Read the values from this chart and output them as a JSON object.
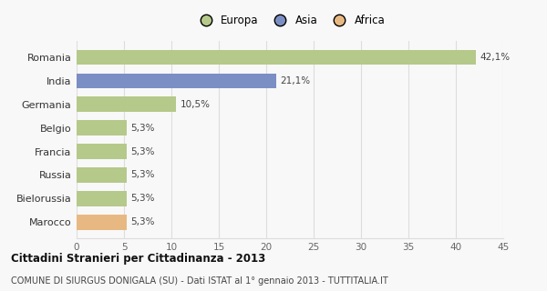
{
  "categories": [
    "Marocco",
    "Bielorussia",
    "Russia",
    "Francia",
    "Belgio",
    "Germania",
    "India",
    "Romania"
  ],
  "values": [
    5.3,
    5.3,
    5.3,
    5.3,
    5.3,
    10.5,
    21.1,
    42.1
  ],
  "labels": [
    "5,3%",
    "5,3%",
    "5,3%",
    "5,3%",
    "5,3%",
    "10,5%",
    "21,1%",
    "42,1%"
  ],
  "colors": [
    "#e8b882",
    "#b5c98a",
    "#b5c98a",
    "#b5c98a",
    "#b5c98a",
    "#b5c98a",
    "#7b8fc4",
    "#b5c98a"
  ],
  "legend": [
    {
      "label": "Europa",
      "color": "#b5c98a"
    },
    {
      "label": "Asia",
      "color": "#7b8fc4"
    },
    {
      "label": "Africa",
      "color": "#e8b882"
    }
  ],
  "xlim": [
    0,
    45
  ],
  "xticks": [
    0,
    5,
    10,
    15,
    20,
    25,
    30,
    35,
    40,
    45
  ],
  "title_bold": "Cittadini Stranieri per Cittadinanza - 2013",
  "subtitle": "COMUNE DI SIURGUS DONIGALA (SU) - Dati ISTAT al 1° gennaio 2013 - TUTTITALIA.IT",
  "bg_color": "#f8f8f8",
  "grid_color": "#dddddd",
  "bar_height": 0.65
}
